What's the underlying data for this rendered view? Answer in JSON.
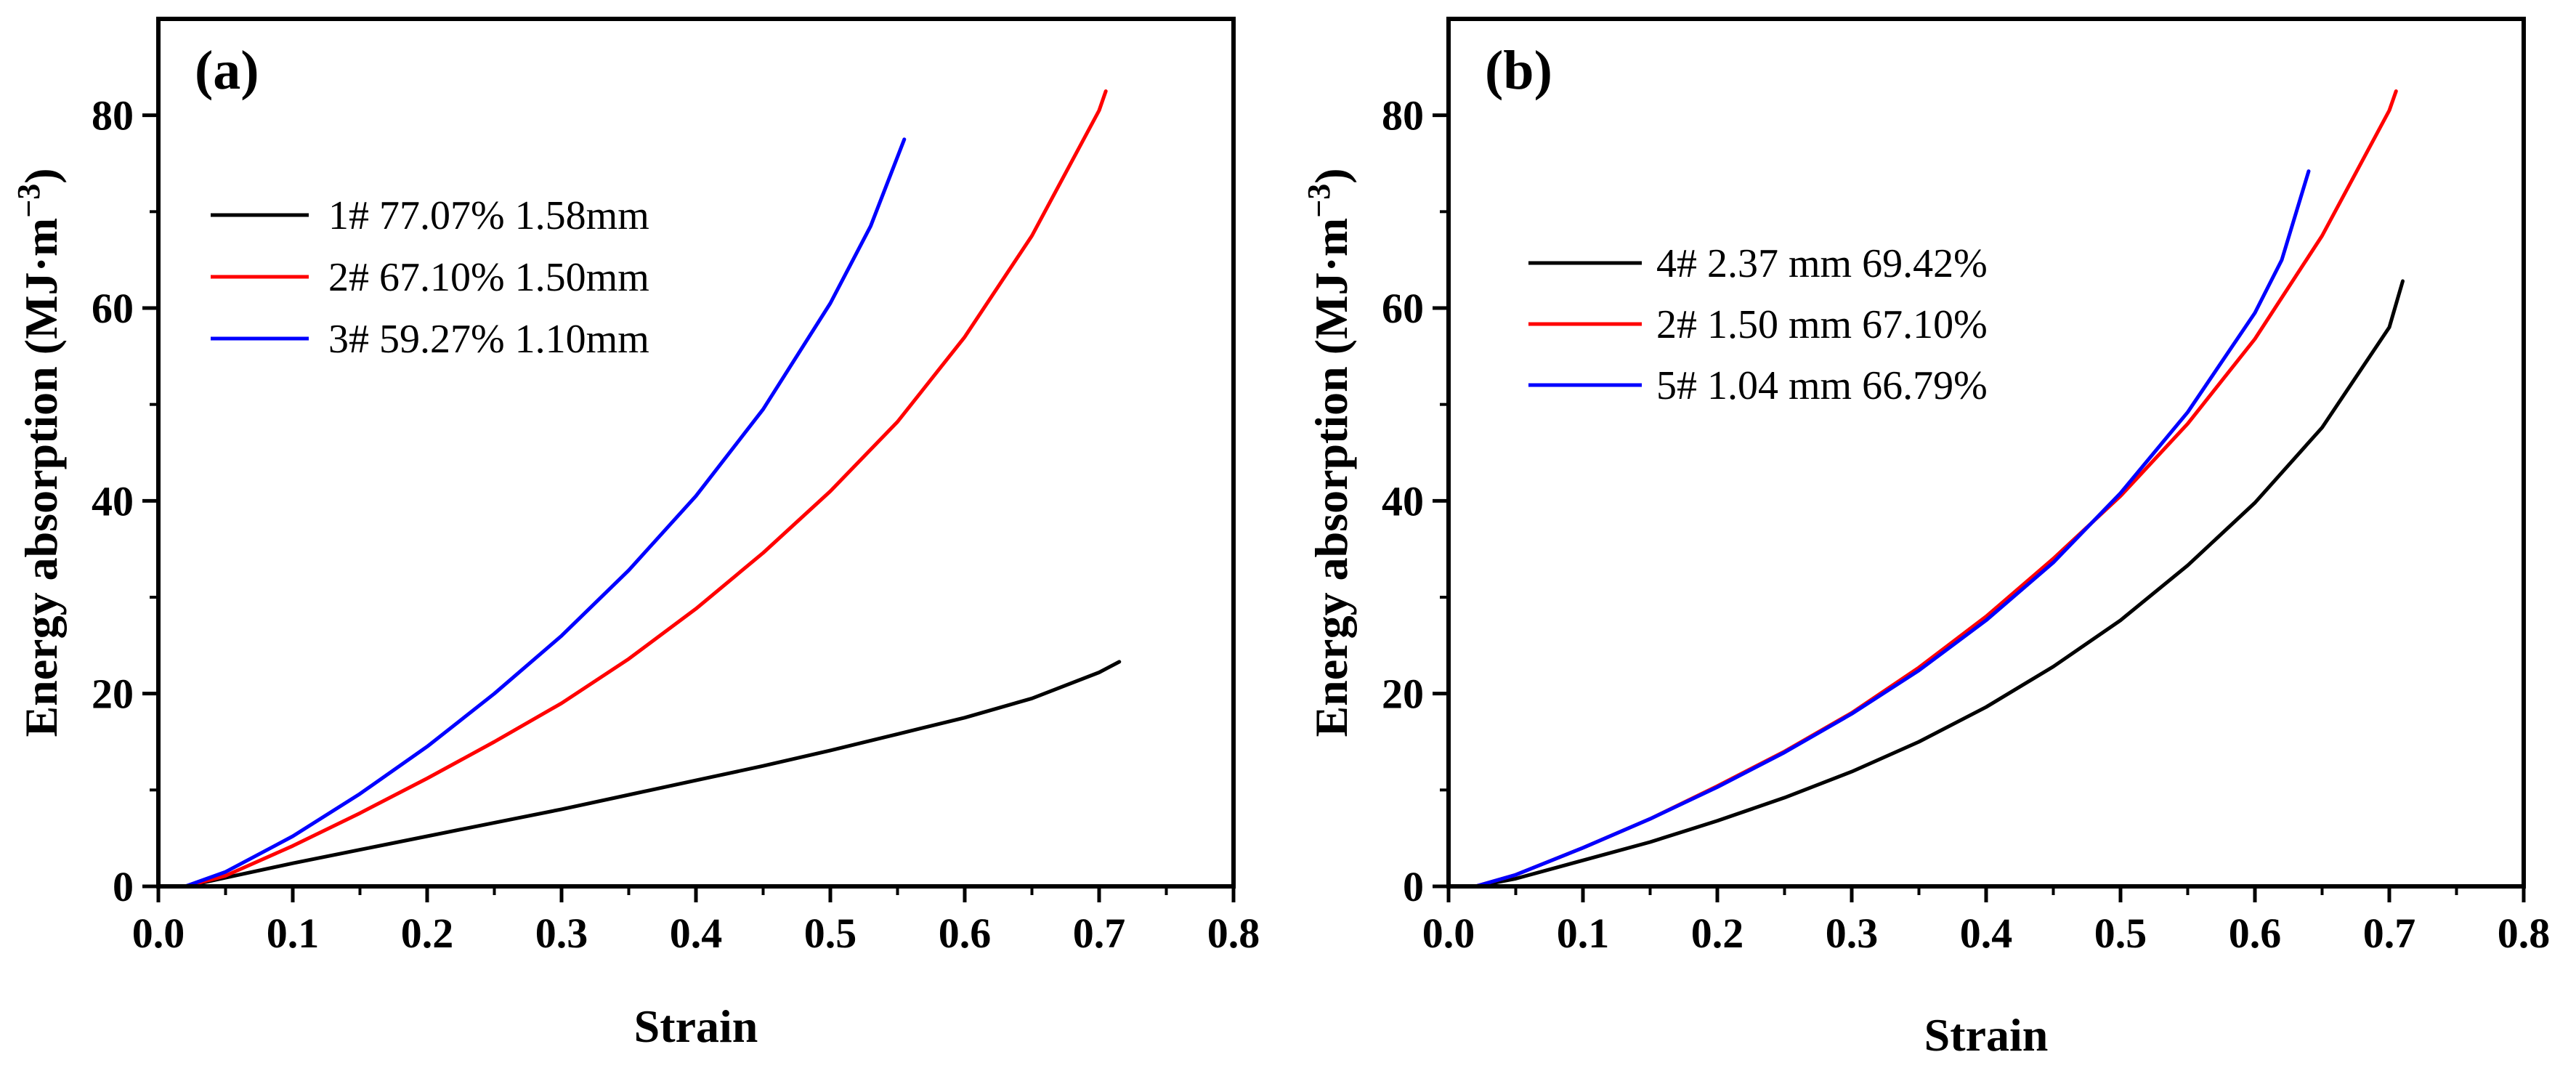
{
  "colors": {
    "black": "#000000",
    "red": "#ff0000",
    "blue": "#0000ff"
  },
  "chart_data": [
    {
      "type": "line",
      "panel_label": "(a)",
      "xlabel": "Strain",
      "ylabel": "Energy absorption (MJ·m",
      "ylabel_sup": "−3",
      "ylabel_close": ")",
      "xlim": [
        0,
        0.8
      ],
      "ylim": [
        0,
        90
      ],
      "xticks": [
        "0.0",
        "0.1",
        "0.2",
        "0.3",
        "0.4",
        "0.5",
        "0.6",
        "0.7",
        "0.8"
      ],
      "yticks": [
        "0",
        "20",
        "40",
        "60",
        "80"
      ],
      "legend_position": "top-left",
      "series": [
        {
          "name": "1# 77.07% 1.58mm",
          "color": "#000000",
          "x": [
            0.02,
            0.05,
            0.1,
            0.15,
            0.2,
            0.25,
            0.3,
            0.35,
            0.4,
            0.45,
            0.5,
            0.55,
            0.6,
            0.65,
            0.7,
            0.715
          ],
          "y": [
            0,
            0.9,
            2.4,
            3.8,
            5.2,
            6.6,
            8.0,
            9.5,
            11.0,
            12.5,
            14.1,
            15.8,
            17.5,
            19.5,
            22.2,
            23.3
          ]
        },
        {
          "name": "2# 67.10% 1.50mm",
          "color": "#ff0000",
          "x": [
            0.02,
            0.05,
            0.1,
            0.15,
            0.2,
            0.25,
            0.3,
            0.35,
            0.4,
            0.45,
            0.5,
            0.55,
            0.6,
            0.65,
            0.7,
            0.705
          ],
          "y": [
            0,
            1.1,
            4.2,
            7.6,
            11.2,
            15.0,
            19.0,
            23.6,
            28.8,
            34.6,
            41.0,
            48.2,
            57.0,
            67.5,
            80.5,
            82.5
          ]
        },
        {
          "name": "3# 59.27% 1.10mm",
          "color": "#0000ff",
          "x": [
            0.02,
            0.05,
            0.1,
            0.15,
            0.2,
            0.25,
            0.3,
            0.35,
            0.4,
            0.45,
            0.5,
            0.53,
            0.555
          ],
          "y": [
            0,
            1.5,
            5.2,
            9.6,
            14.5,
            20.0,
            26.0,
            32.8,
            40.5,
            49.5,
            60.5,
            68.5,
            77.5
          ]
        }
      ]
    },
    {
      "type": "line",
      "panel_label": "(b)",
      "xlabel": "Strain",
      "ylabel": "Energy absorption (MJ·m",
      "ylabel_sup": "−3",
      "ylabel_close": ")",
      "xlim": [
        0,
        0.8
      ],
      "ylim": [
        0,
        90
      ],
      "xticks": [
        "0.0",
        "0.1",
        "0.2",
        "0.3",
        "0.4",
        "0.5",
        "0.6",
        "0.7",
        "0.8"
      ],
      "yticks": [
        "0",
        "20",
        "40",
        "60",
        "80"
      ],
      "legend_position": "upper-left",
      "series": [
        {
          "name": "4# 2.37 mm 69.42%",
          "color": "#000000",
          "x": [
            0.02,
            0.05,
            0.1,
            0.15,
            0.2,
            0.25,
            0.3,
            0.35,
            0.4,
            0.45,
            0.5,
            0.55,
            0.6,
            0.65,
            0.7,
            0.71
          ],
          "y": [
            0,
            0.8,
            2.7,
            4.6,
            6.8,
            9.2,
            11.9,
            15.0,
            18.6,
            22.8,
            27.6,
            33.3,
            39.8,
            47.6,
            58.0,
            62.8
          ]
        },
        {
          "name": "2# 1.50 mm 67.10%",
          "color": "#ff0000",
          "x": [
            0.02,
            0.05,
            0.1,
            0.15,
            0.2,
            0.25,
            0.3,
            0.35,
            0.4,
            0.45,
            0.5,
            0.55,
            0.6,
            0.65,
            0.7,
            0.705
          ],
          "y": [
            0,
            1.2,
            4.0,
            7.0,
            10.4,
            14.0,
            18.0,
            22.7,
            28.0,
            34.0,
            40.5,
            48.0,
            56.8,
            67.5,
            80.5,
            82.5
          ]
        },
        {
          "name": "5# 1.04 mm 66.79%",
          "color": "#0000ff",
          "x": [
            0.02,
            0.05,
            0.1,
            0.15,
            0.2,
            0.25,
            0.3,
            0.35,
            0.4,
            0.45,
            0.5,
            0.55,
            0.6,
            0.62,
            0.64
          ],
          "y": [
            0,
            1.2,
            4.0,
            7.0,
            10.3,
            13.9,
            17.9,
            22.4,
            27.6,
            33.6,
            40.8,
            49.2,
            59.5,
            65.0,
            74.2
          ]
        }
      ]
    }
  ]
}
